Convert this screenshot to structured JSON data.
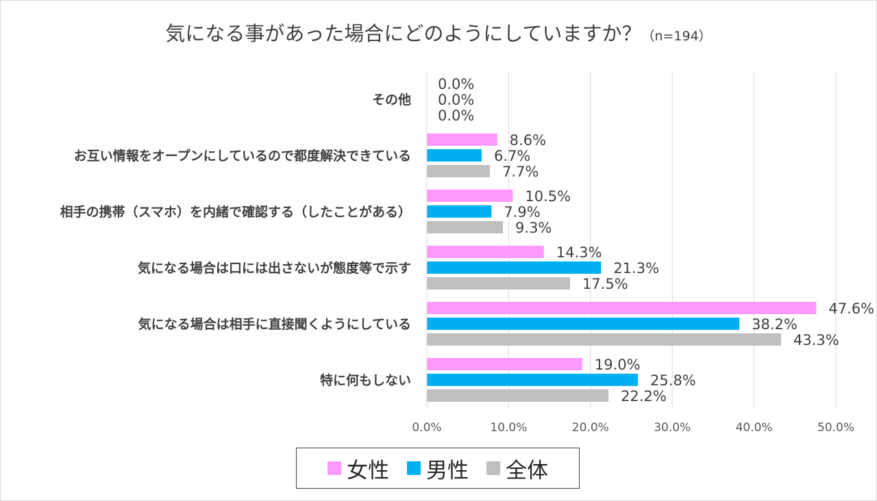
{
  "title": {
    "main": "気になる事があった場合にどのようにしていますか？",
    "sub": "（n=194）"
  },
  "chart_data": {
    "type": "bar",
    "orientation": "horizontal",
    "categories": [
      "その他",
      "お互い情報をオープンにしているので都度解決できている",
      "相手の携帯（スマホ）を内緒で確認する（したことがある）",
      "気になる場合は口には出さないが態度等で示す",
      "気になる場合は相手に直接聞くようにしている",
      "特に何もしない"
    ],
    "series": [
      {
        "name": "女性",
        "color": "#ff99ff",
        "values": [
          0.0,
          8.6,
          10.5,
          14.3,
          47.6,
          19.0
        ],
        "labels": [
          "0.0%",
          "8.6%",
          "10.5%",
          "14.3%",
          "47.6%",
          "19.0%"
        ]
      },
      {
        "name": "男性",
        "color": "#00b0f0",
        "values": [
          0.0,
          6.7,
          7.9,
          21.3,
          38.2,
          25.8
        ],
        "labels": [
          "0.0%",
          "6.7%",
          "7.9%",
          "21.3%",
          "38.2%",
          "25.8%"
        ]
      },
      {
        "name": "全体",
        "color": "#bfbfbf",
        "values": [
          0.0,
          7.7,
          9.3,
          17.5,
          43.3,
          22.2
        ],
        "labels": [
          "0.0%",
          "7.7%",
          "9.3%",
          "17.5%",
          "43.3%",
          "22.2%"
        ]
      }
    ],
    "xlim": [
      0,
      50
    ],
    "xticks": [
      0,
      10,
      20,
      30,
      40,
      50
    ],
    "xtick_labels": [
      "0.0%",
      "10.0%",
      "20.0%",
      "30.0%",
      "40.0%",
      "50.0%"
    ],
    "grid": true,
    "legend_position": "bottom"
  }
}
